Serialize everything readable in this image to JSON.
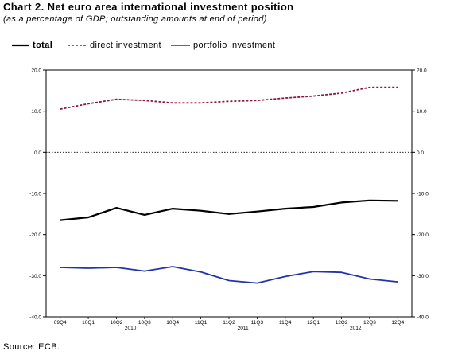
{
  "title": "Chart 2. Net euro area international investment position",
  "subtitle": "(as a percentage of GDP; outstanding amounts at end of period)",
  "source": "Source: ECB.",
  "chart_data": {
    "type": "line",
    "categories": [
      "09Q4",
      "10Q1",
      "10Q2",
      "10Q3",
      "10Q4",
      "11Q1",
      "11Q2",
      "11Q3",
      "11Q4",
      "12Q1",
      "12Q2",
      "12Q3",
      "12Q4"
    ],
    "years": [
      {
        "label": "2010",
        "center_index": 2.5
      },
      {
        "label": "2011",
        "center_index": 6.5
      },
      {
        "label": "2012",
        "center_index": 10.5
      }
    ],
    "ylim": [
      -40,
      20
    ],
    "yticks": [
      20,
      10,
      0,
      -10,
      -20,
      -30,
      -40
    ],
    "ytick_labels": [
      "20.0",
      "10.0",
      "0.0",
      "-10.0",
      "-20.0",
      "-30.0",
      "-40.0"
    ],
    "zero_line": "dotted",
    "series": [
      {
        "name": "total",
        "color": "#000000",
        "style": "solid",
        "width": 2.2,
        "values": [
          -16.5,
          -15.8,
          -13.5,
          -15.2,
          -13.7,
          -14.2,
          -15.0,
          -14.4,
          -13.7,
          -13.3,
          -12.2,
          -11.7,
          -11.8
        ]
      },
      {
        "name": "direct investment",
        "color": "#8b1a3a",
        "style": "dashed",
        "width": 1.8,
        "values": [
          10.5,
          11.8,
          12.9,
          12.6,
          12.0,
          12.0,
          12.4,
          12.6,
          13.2,
          13.7,
          14.4,
          15.8,
          15.8
        ]
      },
      {
        "name": "portfolio investment",
        "color": "#2233aa",
        "style": "solid",
        "width": 1.8,
        "values": [
          -28.0,
          -28.2,
          -28.0,
          -28.9,
          -27.8,
          -29.1,
          -31.2,
          -31.8,
          -30.2,
          -29.0,
          -29.2,
          -30.8,
          -31.5
        ]
      }
    ]
  }
}
